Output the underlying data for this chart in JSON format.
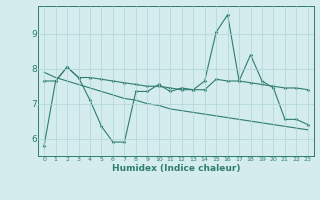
{
  "xlabel": "Humidex (Indice chaleur)",
  "x": [
    0,
    1,
    2,
    3,
    4,
    5,
    6,
    7,
    8,
    9,
    10,
    11,
    12,
    13,
    14,
    15,
    16,
    17,
    18,
    19,
    20,
    21,
    22,
    23
  ],
  "line1": [
    5.8,
    7.65,
    8.05,
    7.75,
    7.1,
    6.35,
    5.9,
    5.9,
    7.35,
    7.35,
    7.55,
    7.35,
    7.45,
    7.4,
    7.65,
    9.05,
    9.55,
    7.65,
    8.4,
    7.65,
    7.45,
    6.55,
    6.55,
    6.4
  ],
  "line2": [
    7.65,
    7.65,
    8.05,
    7.75,
    7.75,
    7.7,
    7.65,
    7.6,
    7.55,
    7.5,
    7.5,
    7.45,
    7.4,
    7.4,
    7.4,
    7.7,
    7.65,
    7.65,
    7.6,
    7.55,
    7.5,
    7.45,
    7.45,
    7.4
  ],
  "line3": [
    7.9,
    7.75,
    7.65,
    7.55,
    7.45,
    7.35,
    7.25,
    7.15,
    7.1,
    7.0,
    6.95,
    6.85,
    6.8,
    6.75,
    6.7,
    6.65,
    6.6,
    6.55,
    6.5,
    6.45,
    6.4,
    6.35,
    6.3,
    6.25
  ],
  "line_color": "#2e7d6e",
  "bg_color": "#d4ecee",
  "grid_color": "#b0d4d4",
  "ylim": [
    5.5,
    9.8
  ],
  "yticks": [
    6,
    7,
    8,
    9
  ],
  "xticks": [
    0,
    1,
    2,
    3,
    4,
    5,
    6,
    7,
    8,
    9,
    10,
    11,
    12,
    13,
    14,
    15,
    16,
    17,
    18,
    19,
    20,
    21,
    22,
    23
  ]
}
